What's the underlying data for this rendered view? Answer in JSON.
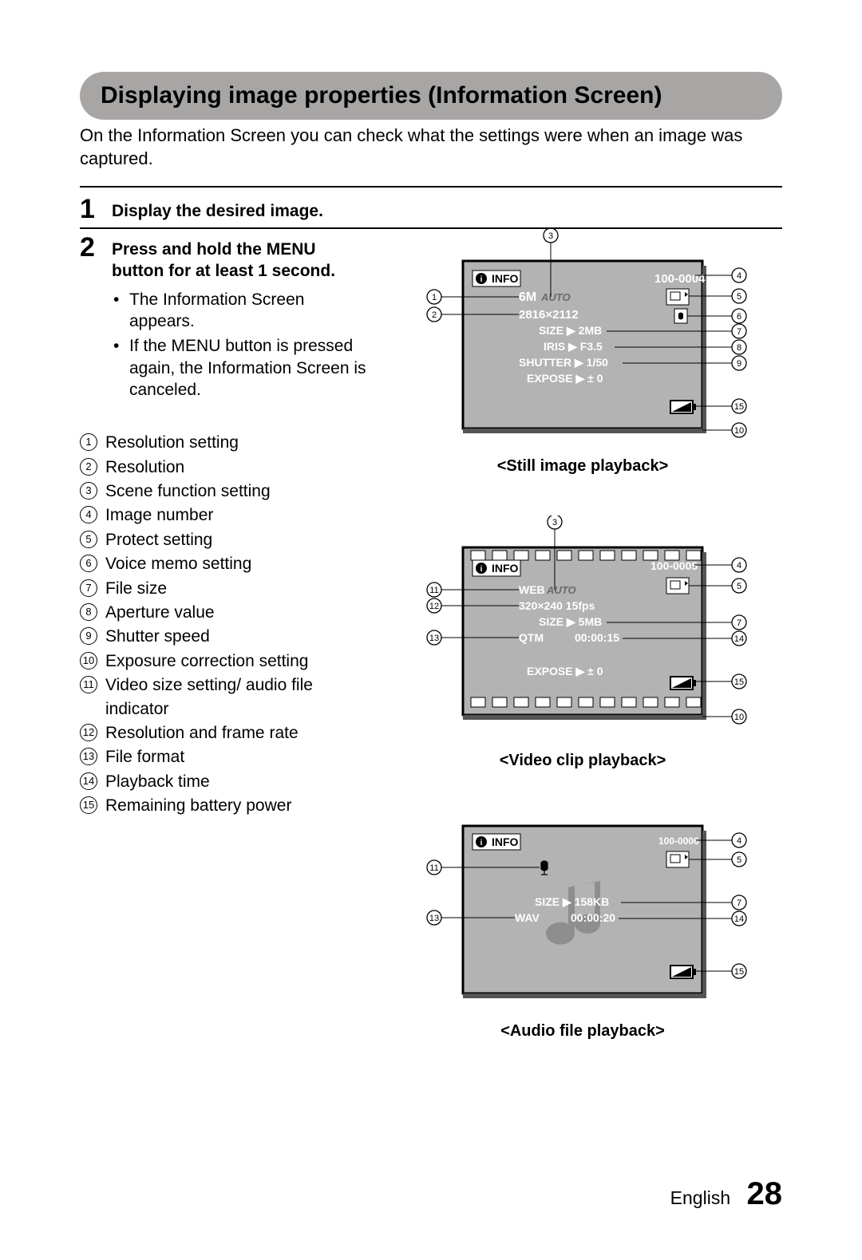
{
  "title": "Displaying image properties (Information Screen)",
  "intro": "On the Information Screen you can check what the settings were when an image was captured.",
  "steps": {
    "s1": {
      "num": "1",
      "head": "Display the desired image."
    },
    "s2": {
      "num": "2",
      "head": "Press and hold the MENU button for at least 1 second.",
      "bullets": [
        "The Information Screen appears.",
        "If the MENU button is pressed again, the Information Screen is canceled."
      ]
    }
  },
  "legend": [
    {
      "n": "1",
      "t": "Resolution setting"
    },
    {
      "n": "2",
      "t": "Resolution"
    },
    {
      "n": "3",
      "t": "Scene function setting"
    },
    {
      "n": "4",
      "t": "Image number"
    },
    {
      "n": "5",
      "t": "Protect setting"
    },
    {
      "n": "6",
      "t": "Voice memo setting"
    },
    {
      "n": "7",
      "t": "File size"
    },
    {
      "n": "8",
      "t": "Aperture value"
    },
    {
      "n": "9",
      "t": "Shutter speed"
    },
    {
      "n": "10",
      "t": "Exposure correction setting"
    },
    {
      "n": "11",
      "t": "Video size setting/ audio file indicator"
    },
    {
      "n": "12",
      "t": "Resolution and frame rate"
    },
    {
      "n": "13",
      "t": "File format"
    },
    {
      "n": "14",
      "t": "Playback time"
    },
    {
      "n": "15",
      "t": "Remaining battery power"
    }
  ],
  "diagrams": {
    "still": {
      "caption": "<Still image playback>",
      "info_label": "INFO",
      "image_number": "100-0004",
      "res_setting": "6M",
      "scene": "AUTO",
      "resolution": "2816×2112",
      "size": "SIZE ▶ 2MB",
      "iris": "IRIS ▶ F3.5",
      "shutter": "SHUTTER ▶ 1/50",
      "expose": "EXPOSE ▶ ± 0",
      "callouts": {
        "left": [
          "1",
          "2"
        ],
        "top": [
          "3"
        ],
        "right": [
          "4",
          "5",
          "6",
          "7",
          "8",
          "9",
          "15",
          "10"
        ]
      }
    },
    "video": {
      "caption": "<Video clip playback>",
      "info_label": "INFO",
      "image_number": "100-0005",
      "vid_size": "WEB",
      "scene": "AUTO",
      "res_fps": "320×240 15fps",
      "size": "SIZE ▶ 5MB",
      "fmt": "QTM",
      "time": "00:00:15",
      "expose": "EXPOSE ▶ ± 0",
      "callouts": {
        "left": [
          "11",
          "12",
          "13"
        ],
        "top": [
          "3"
        ],
        "right": [
          "4",
          "5",
          "7",
          "14",
          "15",
          "10"
        ]
      }
    },
    "audio": {
      "caption": "<Audio file playback>",
      "info_label": "INFO",
      "image_number": "100-0006",
      "size": "SIZE ▶ 158KB",
      "fmt": "WAV",
      "time": "00:00:20",
      "callouts": {
        "left": [
          "11",
          "13"
        ],
        "right": [
          "4",
          "5",
          "7",
          "14",
          "15"
        ]
      }
    }
  },
  "footer": {
    "lang": "English",
    "page": "28"
  },
  "colors": {
    "title_bg": "#a8a5a5",
    "text": "#000000",
    "screen_gray": "#b3b3b3",
    "screen_border": "#000000",
    "white": "#ffffff"
  }
}
